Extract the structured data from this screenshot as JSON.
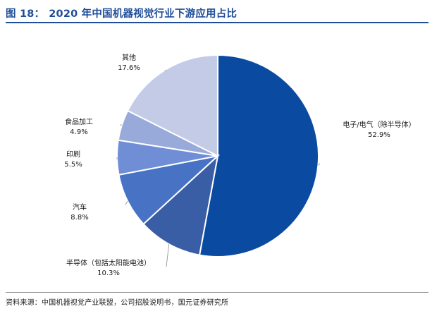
{
  "header": {
    "figure_label": "图 18：",
    "title": "2020 年中国机器视觉行业下游应用占比"
  },
  "source": {
    "text": "资料来源：中国机器视觉产业联盟，公司招股说明书，国元证券研究所"
  },
  "chart_data": {
    "type": "pie",
    "title": "",
    "unit": "%",
    "start_angle_deg": 0,
    "direction": "clockwise",
    "slices": [
      {
        "label": "电子/电气（除半导体）",
        "value": 52.9,
        "value_label": "52.9%",
        "color": "#0a4aa0"
      },
      {
        "label": "半导体（包括太阳能电池）",
        "value": 10.3,
        "value_label": "10.3%",
        "color": "#3a5ea6"
      },
      {
        "label": "汽车",
        "value": 8.8,
        "value_label": "8.8%",
        "color": "#4872c4"
      },
      {
        "label": "印刷",
        "value": 5.5,
        "value_label": "5.5%",
        "color": "#6f8ed6"
      },
      {
        "label": "食品加工",
        "value": 4.9,
        "value_label": "4.9%",
        "color": "#98aad9"
      },
      {
        "label": "其他",
        "value": 17.6,
        "value_label": "17.6%",
        "color": "#c4cbe6"
      }
    ]
  }
}
